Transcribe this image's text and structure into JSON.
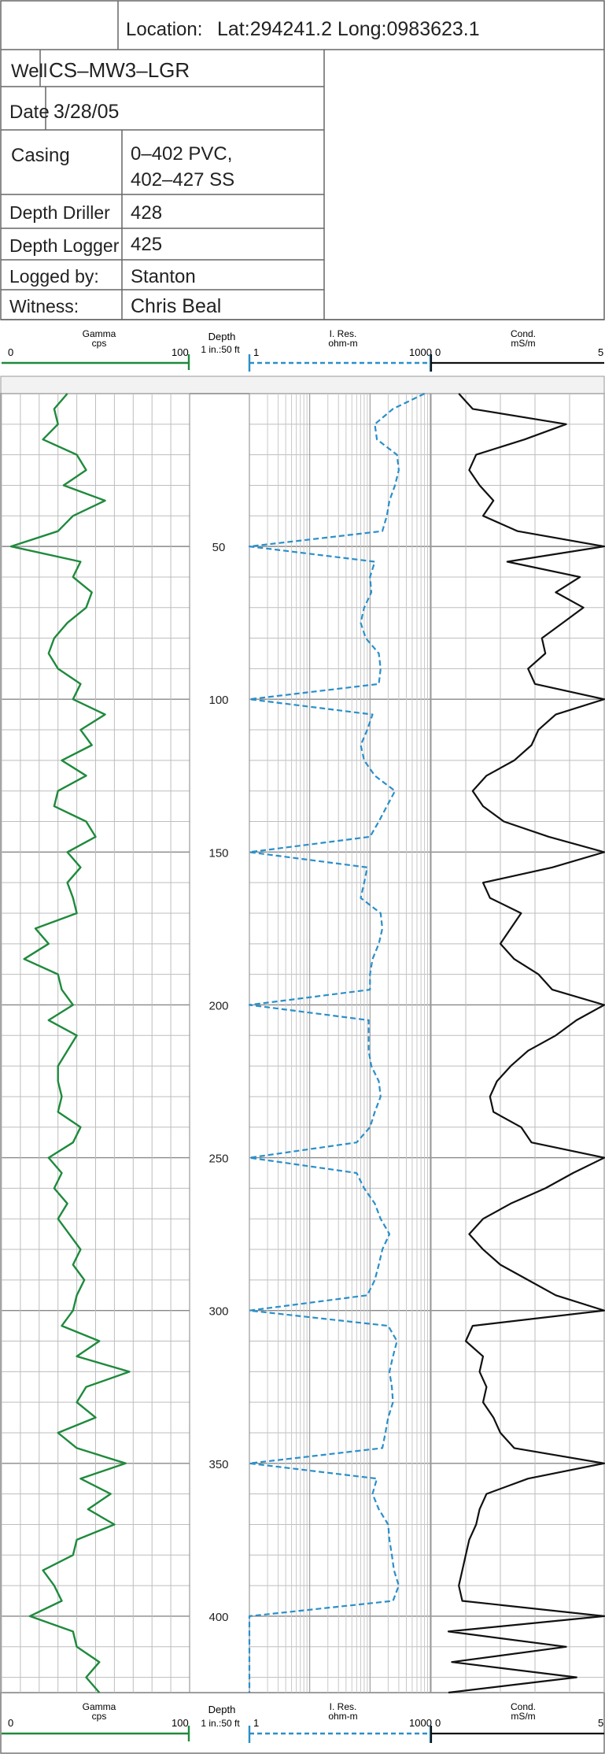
{
  "header": {
    "location_label": "Location:",
    "location_value": "Lat:294241.2 Long:0983623.1",
    "rows": [
      {
        "label": "Well",
        "value": "CS–MW3–LGR"
      },
      {
        "label": "Date",
        "value": "3/28/05"
      },
      {
        "label": "Casing",
        "value": [
          "0–402 PVC,",
          "402–427 SS"
        ]
      },
      {
        "label": "Depth Driller",
        "value": "428"
      },
      {
        "label": "Depth Logger",
        "value": "425"
      },
      {
        "label": "Logged by:",
        "value": "Stanton"
      },
      {
        "label": "Witness:",
        "value": "Chris Beal"
      }
    ]
  },
  "tracks": {
    "gamma": {
      "title": "Gamma",
      "unit": "cps",
      "min_label": "0",
      "max_label": "100",
      "color": "#1e8a3c"
    },
    "depth": {
      "title": "Depth",
      "scale": "1 in.:50 ft"
    },
    "resistivity": {
      "title": "I. Res.",
      "unit": "ohm-m",
      "min_label": "1",
      "max_label": "1000",
      "color": "#2a8fc9"
    },
    "conductivity": {
      "title": "Cond.",
      "unit": "mS/m",
      "min_label": "0",
      "max_label": "5",
      "color": "#111111"
    }
  },
  "chart_data": {
    "type": "line",
    "y_label": "Depth",
    "y_range": [
      0,
      425
    ],
    "depth_ticks": [
      50,
      100,
      150,
      200,
      250,
      300,
      350,
      400
    ],
    "gamma_range": [
      0,
      100
    ],
    "resistivity_range": [
      1,
      1000
    ],
    "resistivity_scale": "log",
    "conductivity_range": [
      0,
      5
    ],
    "series": [
      {
        "name": "Gamma",
        "unit": "cps",
        "color": "#1e8a3c",
        "points": [
          [
            0,
            35
          ],
          [
            5,
            28
          ],
          [
            10,
            30
          ],
          [
            15,
            22
          ],
          [
            20,
            40
          ],
          [
            25,
            45
          ],
          [
            30,
            33
          ],
          [
            35,
            55
          ],
          [
            40,
            38
          ],
          [
            45,
            30
          ],
          [
            50,
            5
          ],
          [
            55,
            42
          ],
          [
            60,
            38
          ],
          [
            65,
            48
          ],
          [
            70,
            45
          ],
          [
            75,
            35
          ],
          [
            80,
            28
          ],
          [
            85,
            25
          ],
          [
            90,
            30
          ],
          [
            95,
            42
          ],
          [
            100,
            38
          ],
          [
            105,
            55
          ],
          [
            110,
            42
          ],
          [
            115,
            48
          ],
          [
            120,
            32
          ],
          [
            125,
            45
          ],
          [
            130,
            30
          ],
          [
            135,
            28
          ],
          [
            140,
            45
          ],
          [
            145,
            50
          ],
          [
            150,
            35
          ],
          [
            155,
            42
          ],
          [
            160,
            35
          ],
          [
            165,
            38
          ],
          [
            170,
            40
          ],
          [
            175,
            18
          ],
          [
            180,
            25
          ],
          [
            185,
            12
          ],
          [
            190,
            30
          ],
          [
            195,
            32
          ],
          [
            200,
            38
          ],
          [
            205,
            25
          ],
          [
            210,
            40
          ],
          [
            215,
            35
          ],
          [
            220,
            30
          ],
          [
            225,
            30
          ],
          [
            230,
            32
          ],
          [
            235,
            30
          ],
          [
            240,
            42
          ],
          [
            245,
            38
          ],
          [
            250,
            25
          ],
          [
            255,
            32
          ],
          [
            260,
            28
          ],
          [
            265,
            35
          ],
          [
            270,
            30
          ],
          [
            275,
            36
          ],
          [
            280,
            42
          ],
          [
            285,
            38
          ],
          [
            290,
            44
          ],
          [
            295,
            40
          ],
          [
            300,
            38
          ],
          [
            305,
            32
          ],
          [
            310,
            52
          ],
          [
            315,
            40
          ],
          [
            320,
            68
          ],
          [
            325,
            45
          ],
          [
            330,
            40
          ],
          [
            335,
            50
          ],
          [
            340,
            30
          ],
          [
            345,
            40
          ],
          [
            350,
            66
          ],
          [
            355,
            42
          ],
          [
            360,
            58
          ],
          [
            365,
            46
          ],
          [
            370,
            60
          ],
          [
            375,
            40
          ],
          [
            380,
            38
          ],
          [
            385,
            22
          ],
          [
            390,
            28
          ],
          [
            395,
            32
          ],
          [
            400,
            15
          ],
          [
            405,
            38
          ],
          [
            410,
            40
          ],
          [
            415,
            52
          ],
          [
            420,
            45
          ],
          [
            425,
            52
          ]
        ]
      },
      {
        "name": "I. Res.",
        "unit": "ohm-m",
        "color": "#2a8fc9",
        "points": [
          [
            0,
            800
          ],
          [
            5,
            240
          ],
          [
            10,
            120
          ],
          [
            15,
            130
          ],
          [
            20,
            280
          ],
          [
            25,
            300
          ],
          [
            30,
            260
          ],
          [
            35,
            210
          ],
          [
            40,
            190
          ],
          [
            45,
            160
          ],
          [
            50,
            1
          ],
          [
            55,
            120
          ],
          [
            60,
            100
          ],
          [
            65,
            105
          ],
          [
            70,
            80
          ],
          [
            75,
            70
          ],
          [
            80,
            85
          ],
          [
            85,
            140
          ],
          [
            90,
            150
          ],
          [
            95,
            140
          ],
          [
            100,
            1
          ],
          [
            105,
            110
          ],
          [
            110,
            90
          ],
          [
            115,
            70
          ],
          [
            120,
            80
          ],
          [
            125,
            120
          ],
          [
            130,
            260
          ],
          [
            135,
            190
          ],
          [
            140,
            140
          ],
          [
            145,
            100
          ],
          [
            150,
            1
          ],
          [
            155,
            90
          ],
          [
            160,
            80
          ],
          [
            165,
            70
          ],
          [
            170,
            150
          ],
          [
            175,
            160
          ],
          [
            180,
            140
          ],
          [
            185,
            110
          ],
          [
            190,
            100
          ],
          [
            195,
            100
          ],
          [
            200,
            1
          ],
          [
            205,
            95
          ],
          [
            210,
            95
          ],
          [
            215,
            95
          ],
          [
            220,
            105
          ],
          [
            225,
            140
          ],
          [
            230,
            150
          ],
          [
            235,
            120
          ],
          [
            240,
            100
          ],
          [
            245,
            60
          ],
          [
            250,
            1
          ],
          [
            255,
            60
          ],
          [
            260,
            80
          ],
          [
            265,
            120
          ],
          [
            270,
            150
          ],
          [
            275,
            210
          ],
          [
            280,
            160
          ],
          [
            285,
            140
          ],
          [
            290,
            120
          ],
          [
            295,
            90
          ],
          [
            300,
            1
          ],
          [
            305,
            200
          ],
          [
            310,
            280
          ],
          [
            315,
            240
          ],
          [
            320,
            210
          ],
          [
            325,
            230
          ],
          [
            330,
            240
          ],
          [
            335,
            200
          ],
          [
            340,
            180
          ],
          [
            345,
            160
          ],
          [
            350,
            1
          ],
          [
            355,
            130
          ],
          [
            360,
            110
          ],
          [
            365,
            140
          ],
          [
            370,
            200
          ],
          [
            375,
            210
          ],
          [
            380,
            230
          ],
          [
            385,
            250
          ],
          [
            390,
            300
          ],
          [
            395,
            240
          ],
          [
            400,
            1
          ],
          [
            405,
            1
          ],
          [
            410,
            1
          ],
          [
            415,
            1
          ],
          [
            420,
            1
          ],
          [
            425,
            1
          ]
        ]
      },
      {
        "name": "Cond.",
        "unit": "mS/m",
        "color": "#111111",
        "points": [
          [
            0,
            0.8
          ],
          [
            5,
            1.2
          ],
          [
            10,
            3.9
          ],
          [
            15,
            2.7
          ],
          [
            20,
            1.3
          ],
          [
            25,
            1.1
          ],
          [
            30,
            1.4
          ],
          [
            35,
            1.8
          ],
          [
            40,
            1.5
          ],
          [
            45,
            2.5
          ],
          [
            50,
            5.0
          ],
          [
            55,
            2.2
          ],
          [
            60,
            4.3
          ],
          [
            65,
            3.6
          ],
          [
            70,
            4.4
          ],
          [
            75,
            3.8
          ],
          [
            80,
            3.2
          ],
          [
            85,
            3.3
          ],
          [
            90,
            2.8
          ],
          [
            95,
            3.0
          ],
          [
            100,
            5.0
          ],
          [
            105,
            3.6
          ],
          [
            110,
            3.1
          ],
          [
            115,
            2.9
          ],
          [
            120,
            2.4
          ],
          [
            125,
            1.6
          ],
          [
            130,
            1.2
          ],
          [
            135,
            1.5
          ],
          [
            140,
            2.1
          ],
          [
            145,
            3.4
          ],
          [
            150,
            5.0
          ],
          [
            155,
            3.5
          ],
          [
            160,
            1.5
          ],
          [
            165,
            1.7
          ],
          [
            170,
            2.6
          ],
          [
            175,
            2.3
          ],
          [
            180,
            2.0
          ],
          [
            185,
            2.4
          ],
          [
            190,
            3.1
          ],
          [
            195,
            3.5
          ],
          [
            200,
            5.0
          ],
          [
            205,
            4.2
          ],
          [
            210,
            3.6
          ],
          [
            215,
            2.8
          ],
          [
            220,
            2.3
          ],
          [
            225,
            1.9
          ],
          [
            230,
            1.7
          ],
          [
            235,
            1.8
          ],
          [
            240,
            2.6
          ],
          [
            245,
            2.9
          ],
          [
            250,
            5.0
          ],
          [
            255,
            4.1
          ],
          [
            260,
            3.3
          ],
          [
            265,
            2.3
          ],
          [
            270,
            1.5
          ],
          [
            275,
            1.1
          ],
          [
            280,
            1.5
          ],
          [
            285,
            2.0
          ],
          [
            290,
            2.8
          ],
          [
            295,
            3.6
          ],
          [
            300,
            5.0
          ],
          [
            305,
            1.2
          ],
          [
            310,
            1.0
          ],
          [
            315,
            1.5
          ],
          [
            320,
            1.4
          ],
          [
            325,
            1.6
          ],
          [
            330,
            1.5
          ],
          [
            335,
            1.8
          ],
          [
            340,
            2.0
          ],
          [
            345,
            2.4
          ],
          [
            350,
            5.0
          ],
          [
            355,
            2.8
          ],
          [
            360,
            1.6
          ],
          [
            365,
            1.4
          ],
          [
            370,
            1.3
          ],
          [
            375,
            1.1
          ],
          [
            380,
            1.0
          ],
          [
            385,
            0.9
          ],
          [
            390,
            0.8
          ],
          [
            395,
            0.9
          ],
          [
            400,
            5.0
          ],
          [
            405,
            0.5
          ],
          [
            410,
            3.9
          ],
          [
            415,
            0.6
          ],
          [
            420,
            4.2
          ],
          [
            425,
            0.5
          ]
        ]
      }
    ]
  }
}
